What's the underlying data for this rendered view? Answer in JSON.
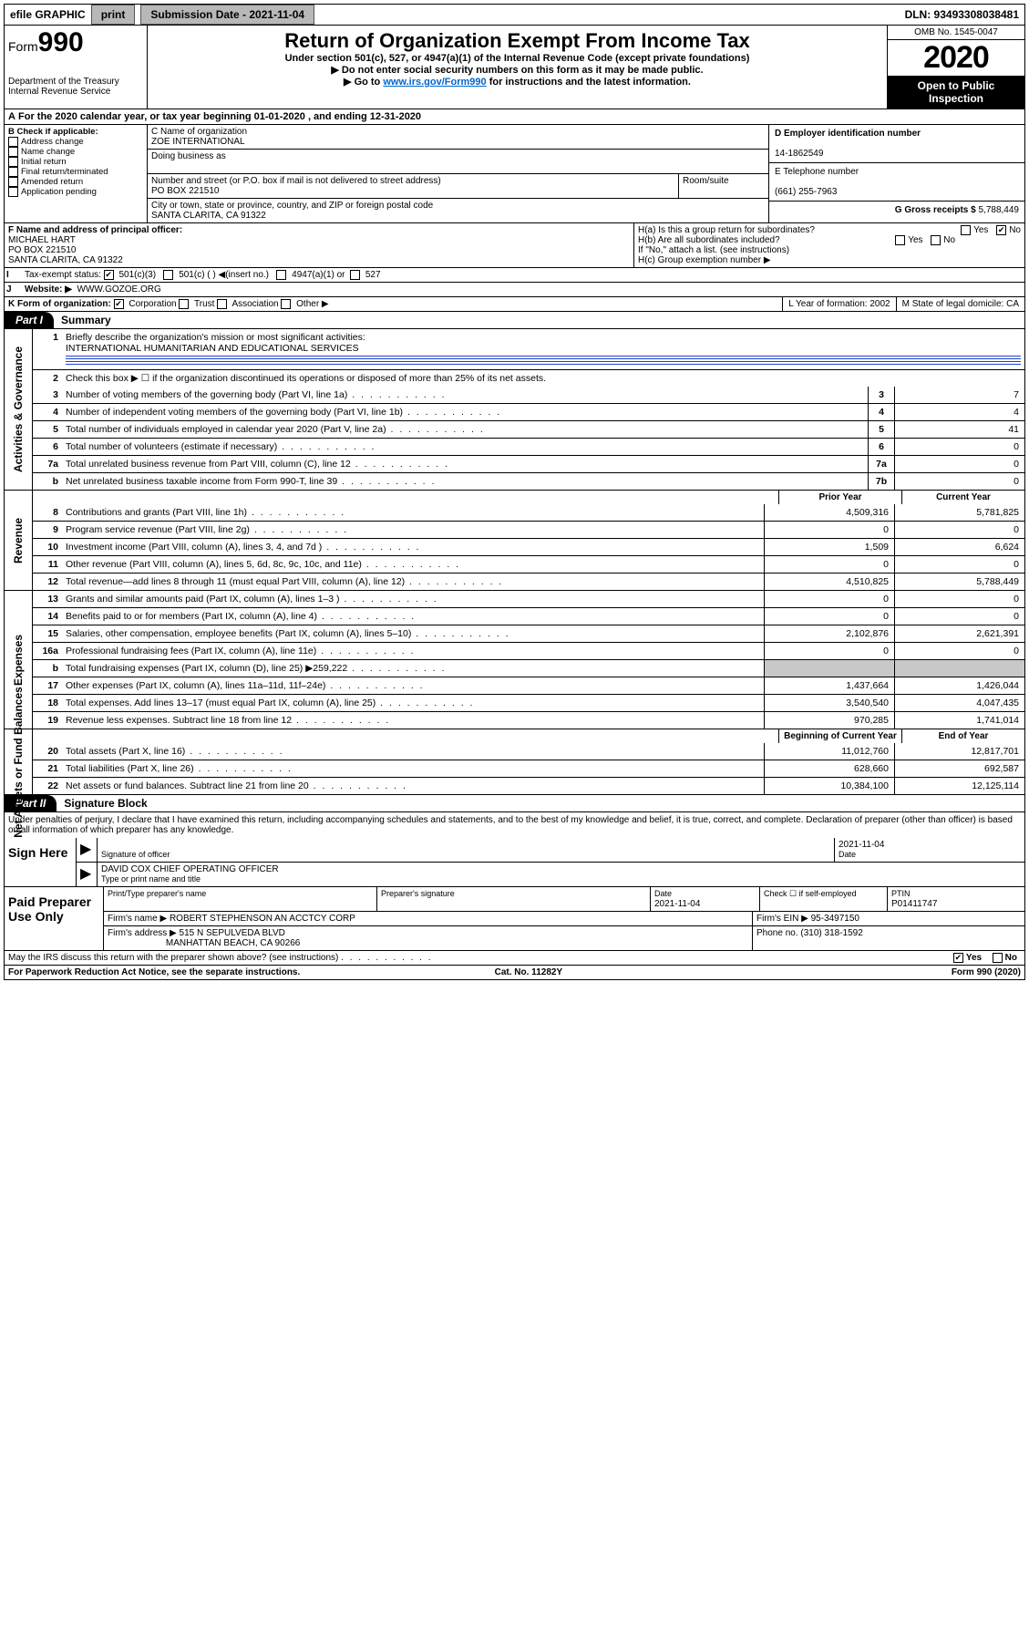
{
  "topbar": {
    "efile": "efile GRAPHIC",
    "print": "print",
    "subLabel": "Submission Date - 2021-11-04",
    "dln": "DLN: 93493308038481"
  },
  "header": {
    "formWord": "Form",
    "formNum": "990",
    "dept": "Department of the Treasury\nInternal Revenue Service",
    "title": "Return of Organization Exempt From Income Tax",
    "sub1": "Under section 501(c), 527, or 4947(a)(1) of the Internal Revenue Code (except private foundations)",
    "sub2": "Do not enter social security numbers on this form as it may be made public.",
    "sub3a": "Go to ",
    "sub3link": "www.irs.gov/Form990",
    "sub3b": " for instructions and the latest information.",
    "omb": "OMB No. 1545-0047",
    "year": "2020",
    "open": "Open to Public Inspection"
  },
  "period": {
    "text": "For the 2020 calendar year, or tax year beginning 01-01-2020    , and ending 12-31-2020"
  },
  "boxB": {
    "label": "B Check if applicable:",
    "items": [
      "Address change",
      "Name change",
      "Initial return",
      "Final return/terminated",
      "Amended return",
      "Application pending"
    ]
  },
  "boxC": {
    "nameLabel": "C Name of organization",
    "name": "ZOE INTERNATIONAL",
    "dbaLabel": "Doing business as",
    "addrLabel": "Number and street (or P.O. box if mail is not delivered to street address)",
    "roomLabel": "Room/suite",
    "addr": "PO BOX 221510",
    "cityLabel": "City or town, state or province, country, and ZIP or foreign postal code",
    "city": "SANTA CLARITA, CA  91322"
  },
  "boxD": {
    "einLabel": "D Employer identification number",
    "ein": "14-1862549",
    "phoneLabel": "E Telephone number",
    "phone": "(661) 255-7963",
    "grossLabel": "G Gross receipts $",
    "gross": "5,788,449"
  },
  "boxF": {
    "label": "F  Name and address of principal officer:",
    "name": "MICHAEL HART",
    "addr1": "PO BOX 221510",
    "addr2": "SANTA CLARITA, CA  91322"
  },
  "boxH": {
    "a": "H(a)  Is this a group return for subordinates?",
    "b": "H(b)  Are all subordinates included?",
    "bnote": "If \"No,\" attach a list. (see instructions)",
    "c": "H(c)  Group exemption number ▶",
    "yes": "Yes",
    "no": "No"
  },
  "rowI": {
    "label": "Tax-exempt status:",
    "opts": [
      "501(c)(3)",
      "501(c) (  ) ◀(insert no.)",
      "4947(a)(1) or",
      "527"
    ]
  },
  "rowJ": {
    "label": "Website: ▶",
    "val": "WWW.GOZOE.ORG"
  },
  "rowK": {
    "label": "K Form of organization:",
    "opts": [
      "Corporation",
      "Trust",
      "Association",
      "Other ▶"
    ],
    "L": "L Year of formation: 2002",
    "M": "M State of legal domicile: CA"
  },
  "partI": {
    "tab": "Part I",
    "title": "Summary"
  },
  "summary": {
    "q1": "Briefly describe the organization's mission or most significant activities:",
    "mission": "INTERNATIONAL HUMANITARIAN AND EDUCATIONAL SERVICES",
    "q2": "Check this box ▶ ☐  if the organization discontinued its operations or disposed of more than 25% of its net assets.",
    "rows_a": [
      {
        "n": "3",
        "t": "Number of voting members of the governing body (Part VI, line 1a)",
        "box": "3",
        "v": "7"
      },
      {
        "n": "4",
        "t": "Number of independent voting members of the governing body (Part VI, line 1b)",
        "box": "4",
        "v": "4"
      },
      {
        "n": "5",
        "t": "Total number of individuals employed in calendar year 2020 (Part V, line 2a)",
        "box": "5",
        "v": "41"
      },
      {
        "n": "6",
        "t": "Total number of volunteers (estimate if necessary)",
        "box": "6",
        "v": "0"
      },
      {
        "n": "7a",
        "t": "Total unrelated business revenue from Part VIII, column (C), line 12",
        "box": "7a",
        "v": "0"
      },
      {
        "n": "b",
        "t": "Net unrelated business taxable income from Form 990-T, line 39",
        "box": "7b",
        "v": "0"
      }
    ],
    "hdr_prior": "Prior Year",
    "hdr_curr": "Current Year",
    "revenue": [
      {
        "n": "8",
        "t": "Contributions and grants (Part VIII, line 1h)",
        "p": "4,509,316",
        "c": "5,781,825"
      },
      {
        "n": "9",
        "t": "Program service revenue (Part VIII, line 2g)",
        "p": "0",
        "c": "0"
      },
      {
        "n": "10",
        "t": "Investment income (Part VIII, column (A), lines 3, 4, and 7d )",
        "p": "1,509",
        "c": "6,624"
      },
      {
        "n": "11",
        "t": "Other revenue (Part VIII, column (A), lines 5, 6d, 8c, 9c, 10c, and 11e)",
        "p": "0",
        "c": "0"
      },
      {
        "n": "12",
        "t": "Total revenue—add lines 8 through 11 (must equal Part VIII, column (A), line 12)",
        "p": "4,510,825",
        "c": "5,788,449"
      }
    ],
    "expenses": [
      {
        "n": "13",
        "t": "Grants and similar amounts paid (Part IX, column (A), lines 1–3 )",
        "p": "0",
        "c": "0"
      },
      {
        "n": "14",
        "t": "Benefits paid to or for members (Part IX, column (A), line 4)",
        "p": "0",
        "c": "0"
      },
      {
        "n": "15",
        "t": "Salaries, other compensation, employee benefits (Part IX, column (A), lines 5–10)",
        "p": "2,102,876",
        "c": "2,621,391"
      },
      {
        "n": "16a",
        "t": "Professional fundraising fees (Part IX, column (A), line 11e)",
        "p": "0",
        "c": "0"
      },
      {
        "n": "b",
        "t": "Total fundraising expenses (Part IX, column (D), line 25) ▶259,222",
        "p": "",
        "c": "",
        "shade": true
      },
      {
        "n": "17",
        "t": "Other expenses (Part IX, column (A), lines 11a–11d, 11f–24e)",
        "p": "1,437,664",
        "c": "1,426,044"
      },
      {
        "n": "18",
        "t": "Total expenses. Add lines 13–17 (must equal Part IX, column (A), line 25)",
        "p": "3,540,540",
        "c": "4,047,435"
      },
      {
        "n": "19",
        "t": "Revenue less expenses. Subtract line 18 from line 12",
        "p": "970,285",
        "c": "1,741,014"
      }
    ],
    "hdr_begin": "Beginning of Current Year",
    "hdr_end": "End of Year",
    "netassets": [
      {
        "n": "20",
        "t": "Total assets (Part X, line 16)",
        "p": "11,012,760",
        "c": "12,817,701"
      },
      {
        "n": "21",
        "t": "Total liabilities (Part X, line 26)",
        "p": "628,660",
        "c": "692,587"
      },
      {
        "n": "22",
        "t": "Net assets or fund balances. Subtract line 21 from line 20",
        "p": "10,384,100",
        "c": "12,125,114"
      }
    ]
  },
  "vtabs": {
    "gov": "Activities & Governance",
    "rev": "Revenue",
    "exp": "Expenses",
    "net": "Net Assets or Fund Balances"
  },
  "partII": {
    "tab": "Part II",
    "title": "Signature Block"
  },
  "perjury": "Under penalties of perjury, I declare that I have examined this return, including accompanying schedules and statements, and to the best of my knowledge and belief, it is true, correct, and complete. Declaration of preparer (other than officer) is based on all information of which preparer has any knowledge.",
  "sign": {
    "label": "Sign Here",
    "sigOfficer": "Signature of officer",
    "date": "2021-11-04",
    "dateLabel": "Date",
    "name": "DAVID COX  CHIEF OPERATING OFFICER",
    "typeLabel": "Type or print name and title"
  },
  "paid": {
    "label": "Paid Preparer Use Only",
    "h1": "Print/Type preparer's name",
    "h2": "Preparer's signature",
    "h3": "Date",
    "h3v": "2021-11-04",
    "h4": "Check ☐ if self-employed",
    "h5": "PTIN",
    "h5v": "P01411747",
    "firmNameL": "Firm's name    ▶",
    "firmName": "ROBERT STEPHENSON AN ACCTCY CORP",
    "firmEinL": "Firm's EIN ▶",
    "firmEin": "95-3497150",
    "firmAddrL": "Firm's address ▶",
    "firmAddr": "515 N SEPULVEDA BLVD",
    "firmCity": "MANHATTAN BEACH, CA  90266",
    "phoneL": "Phone no.",
    "phone": "(310) 318-1592"
  },
  "discuss": "May the IRS discuss this return with the preparer shown above? (see instructions)",
  "footer": {
    "left": "For Paperwork Reduction Act Notice, see the separate instructions.",
    "mid": "Cat. No. 11282Y",
    "right": "Form 990 (2020)"
  },
  "labels": {
    "yes": "Yes",
    "no": "No",
    "A": "A"
  }
}
